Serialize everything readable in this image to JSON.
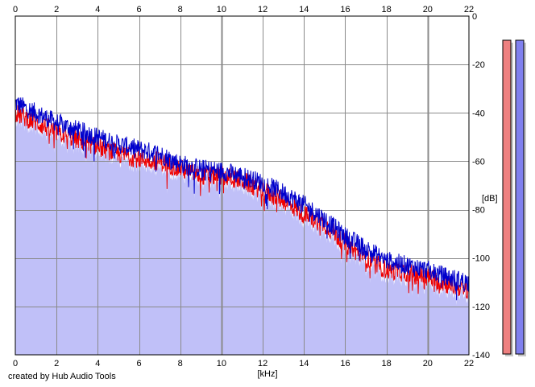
{
  "credit": "created by Hub Audio Tools",
  "chart_data": {
    "type": "area",
    "xlabel": "[kHz]",
    "ylabel": "[dB]",
    "xlim": [
      0,
      22
    ],
    "ylim": [
      -140,
      0
    ],
    "x_ticks": [
      0,
      2,
      4,
      6,
      8,
      10,
      12,
      14,
      16,
      18,
      20,
      22
    ],
    "y_ticks": [
      0,
      -20,
      -40,
      -60,
      -80,
      -100,
      -120,
      -140
    ],
    "grid": true,
    "fill_color": "#c0c0f8",
    "series": [
      {
        "color": "#0000cc",
        "x": [
          0,
          0.5,
          1,
          2,
          3,
          4,
          5,
          6,
          7,
          8,
          9,
          10,
          11,
          12,
          13,
          14,
          15,
          16,
          17,
          18,
          19,
          20,
          21,
          22
        ],
        "values": [
          -36,
          -38,
          -40,
          -44,
          -47,
          -50,
          -53,
          -55,
          -57,
          -61,
          -63,
          -64,
          -66,
          -69,
          -73,
          -78,
          -84,
          -91,
          -96,
          -101,
          -103,
          -105,
          -108,
          -110
        ]
      },
      {
        "color": "#ee0000",
        "x": [
          0,
          0.5,
          1,
          2,
          3,
          4,
          5,
          6,
          7,
          8,
          9,
          10,
          11,
          12,
          13,
          14,
          15,
          16,
          17,
          18,
          19,
          20,
          21,
          22
        ],
        "values": [
          -40,
          -42,
          -44,
          -48,
          -51,
          -54,
          -57,
          -59,
          -60,
          -63,
          -66,
          -66,
          -68,
          -72,
          -76,
          -82,
          -86,
          -94,
          -100,
          -105,
          -106,
          -108,
          -111,
          -113
        ]
      }
    ],
    "level_meters": [
      {
        "color": "#ee8080",
        "level": 1.0
      },
      {
        "color": "#8080ee",
        "level": 1.0
      }
    ]
  }
}
